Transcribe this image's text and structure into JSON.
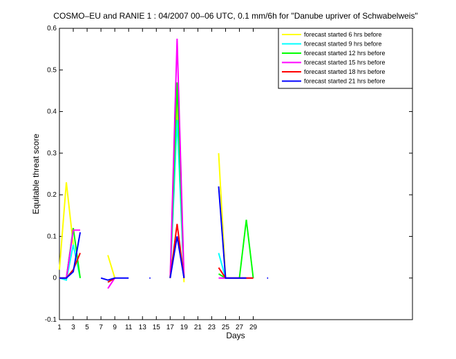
{
  "chart_data": {
    "type": "line",
    "title": "COSMO–EU and RANIE 1 : 04/2007 00–06 UTC, 0.1 mm/6h for \"Danube upriver of Schwabelweis\"",
    "x_label": "Days",
    "y_label": "Equitable threat score",
    "x": [
      1,
      2,
      3,
      4,
      5,
      6,
      7,
      8,
      9,
      10,
      11,
      12,
      13,
      14,
      15,
      16,
      17,
      18,
      19,
      20,
      21,
      22,
      23,
      24,
      25,
      26,
      27,
      28,
      29,
      30,
      31
    ],
    "xlim": [
      1,
      52
    ],
    "xticks": [
      1,
      3,
      5,
      7,
      9,
      11,
      13,
      15,
      17,
      19,
      21,
      23,
      25,
      27,
      29
    ],
    "ylim": [
      -0.1,
      0.6
    ],
    "yticks": [
      -0.1,
      0,
      0.1,
      0.2,
      0.3,
      0.4,
      0.5,
      0.6
    ],
    "series": [
      {
        "name": "forecast started 6 hrs before",
        "color": "#ffff00",
        "values": [
          0.02,
          0.23,
          0.08,
          null,
          null,
          null,
          null,
          0.055,
          0,
          null,
          null,
          null,
          null,
          null,
          null,
          null,
          0,
          0.42,
          -0.01,
          null,
          null,
          null,
          null,
          0.3,
          0,
          0,
          0,
          0,
          0,
          null,
          null
        ]
      },
      {
        "name": "forecast started 9 hrs before",
        "color": "#00ffff",
        "values": [
          0,
          -0.005,
          0.08,
          0,
          null,
          null,
          null,
          -0.01,
          0,
          null,
          null,
          null,
          null,
          null,
          null,
          null,
          0,
          0.38,
          0,
          null,
          null,
          null,
          null,
          0.06,
          0,
          0,
          0,
          0,
          0,
          null,
          null
        ]
      },
      {
        "name": "forecast started 12 hrs before",
        "color": "#00ff00",
        "values": [
          0,
          0,
          0.12,
          0,
          null,
          null,
          null,
          -0.01,
          0,
          null,
          null,
          null,
          null,
          null,
          null,
          null,
          0,
          0.47,
          0,
          null,
          null,
          null,
          null,
          0.01,
          0,
          0,
          0,
          0.14,
          0,
          null,
          null
        ]
      },
      {
        "name": "forecast started 15 hrs before",
        "color": "#ff00ff",
        "values": [
          0,
          0,
          0.115,
          0.115,
          null,
          null,
          null,
          -0.025,
          0,
          null,
          null,
          null,
          null,
          null,
          null,
          null,
          0,
          0.575,
          0,
          null,
          null,
          null,
          null,
          0,
          0,
          0,
          0,
          0,
          0,
          null,
          null
        ]
      },
      {
        "name": "forecast started 18 hrs before",
        "color": "#ff0000",
        "values": [
          0,
          0,
          0.02,
          0.06,
          null,
          null,
          null,
          -0.01,
          0,
          null,
          null,
          null,
          null,
          null,
          null,
          null,
          0,
          0.13,
          0,
          null,
          null,
          null,
          null,
          0.025,
          0,
          0,
          0,
          0,
          0,
          null,
          null
        ]
      },
      {
        "name": "forecast started 21 hrs before",
        "color": "#0000ff",
        "values": [
          0,
          0,
          0.015,
          0.11,
          null,
          null,
          0,
          -0.005,
          0,
          0,
          0,
          null,
          null,
          0,
          null,
          null,
          0,
          0.1,
          0,
          null,
          null,
          null,
          null,
          0.22,
          0,
          0,
          0,
          0,
          null,
          null,
          0
        ]
      }
    ]
  }
}
